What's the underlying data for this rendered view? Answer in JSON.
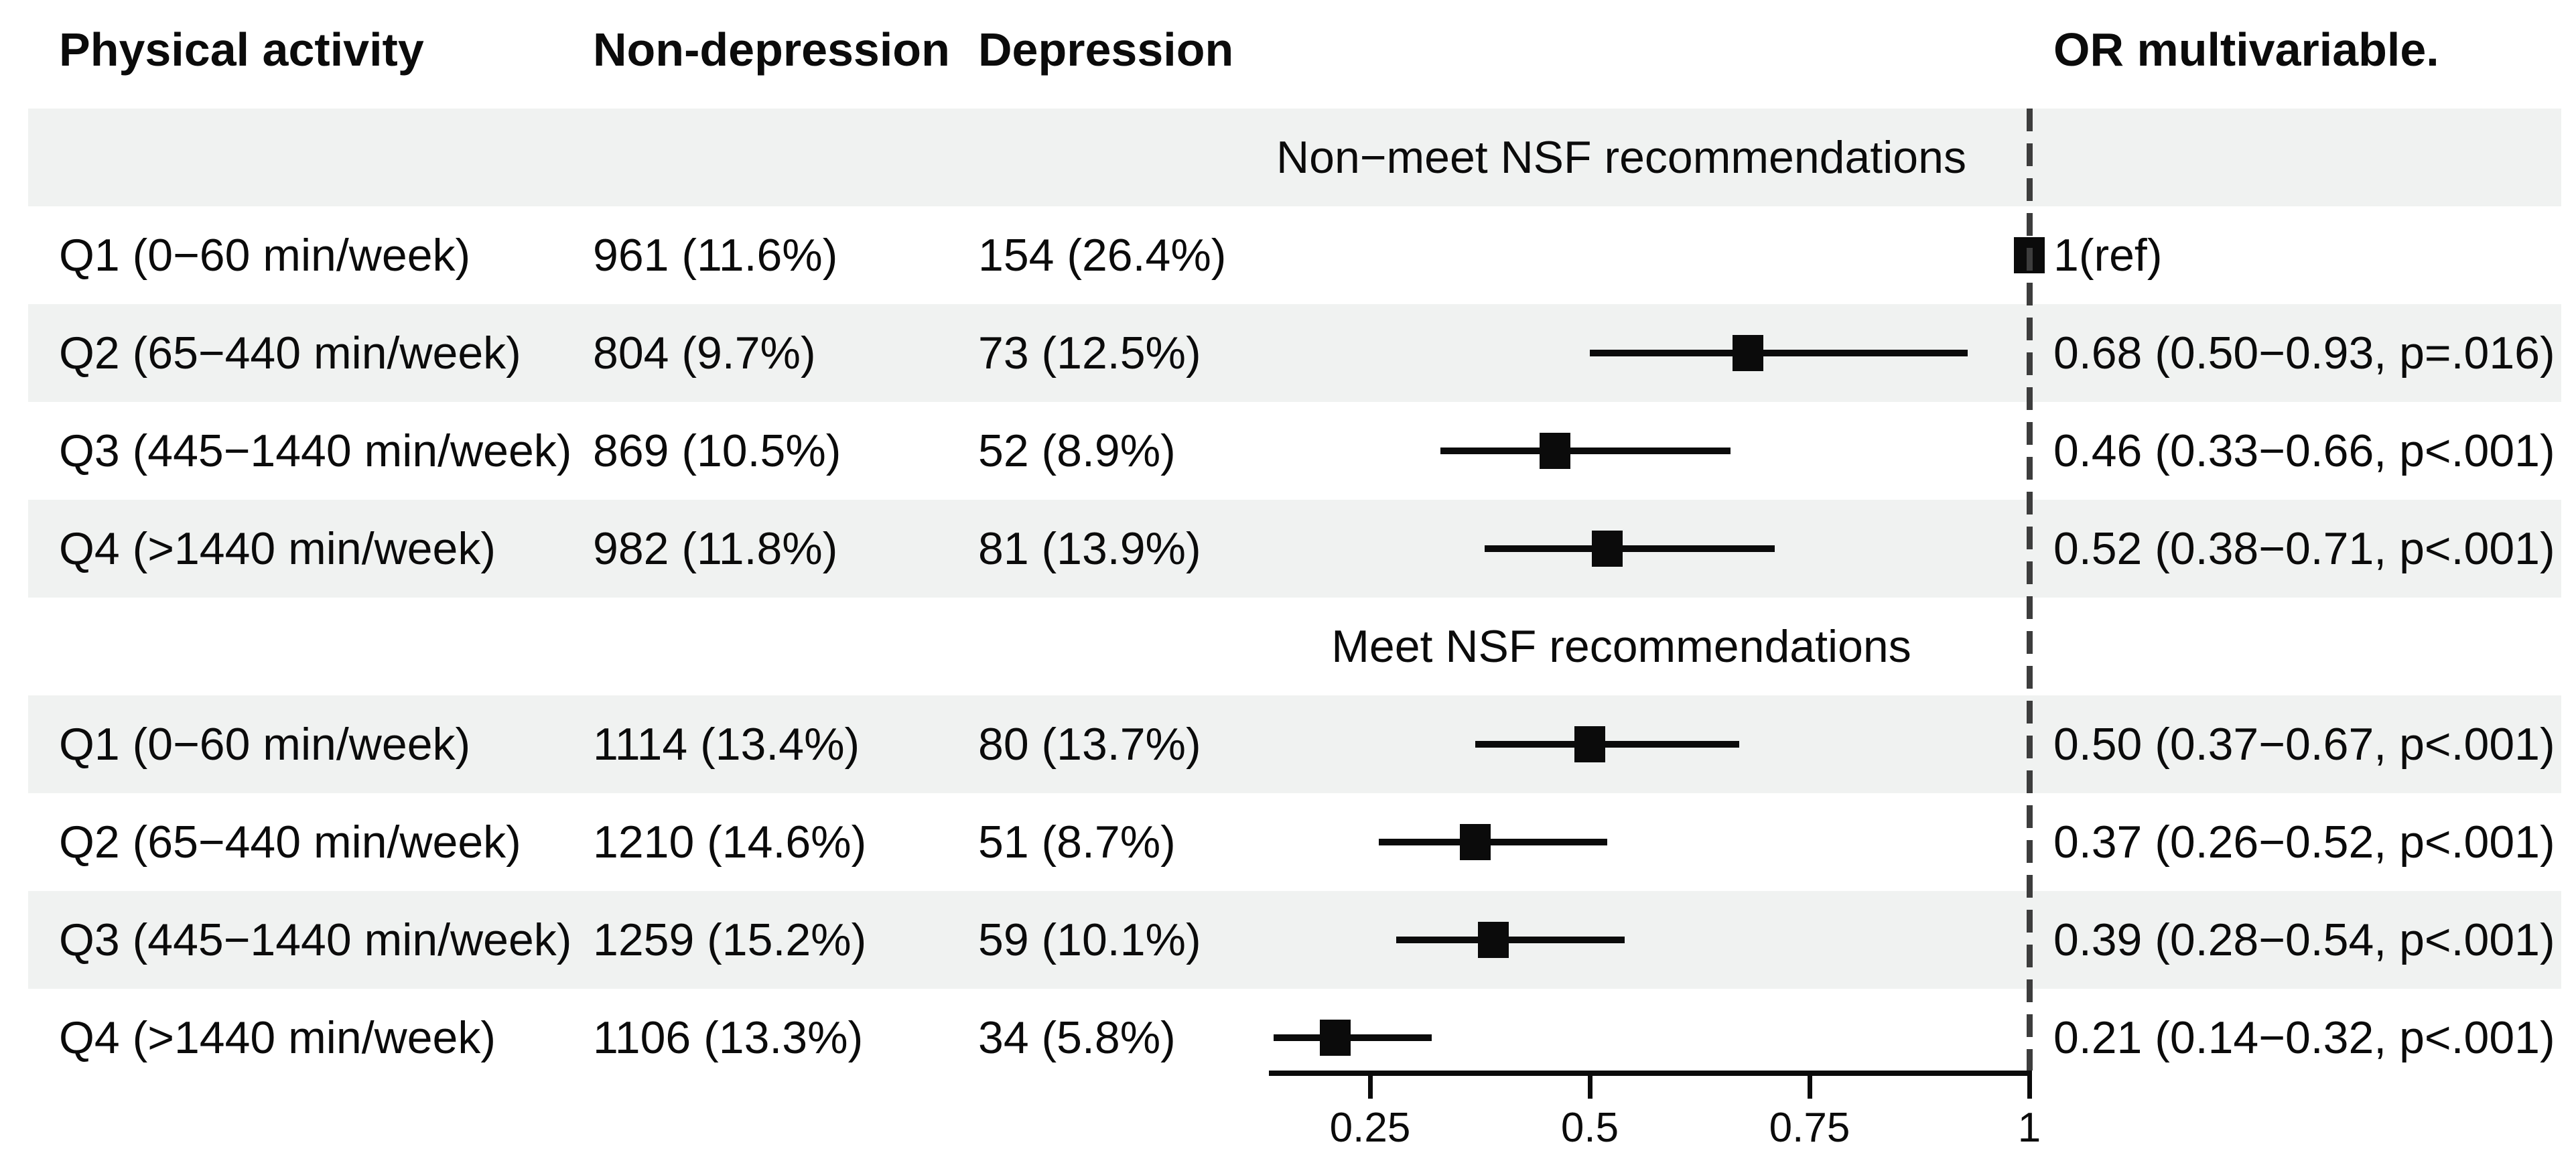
{
  "header": {
    "col1": "Physical activity",
    "col2": "Non-depression",
    "col3": "Depression",
    "col4": "OR multivariable."
  },
  "chart_data": {
    "type": "forest",
    "title": "",
    "xlabel": "",
    "x_scale": "linear",
    "x_ticks": [
      0.25,
      0.5,
      0.75,
      1
    ],
    "x_tick_labels": [
      "0.25",
      "0.5",
      "0.75",
      "1"
    ],
    "x_range": [
      0.135,
      1.003
    ],
    "ref_line": 1,
    "grid": false,
    "legend": "none",
    "sections": [
      {
        "title": "Non−meet NSF recommendations",
        "rows": [
          {
            "label": "Q1 (0−60 min/week)",
            "non_depression": "961 (11.6%)",
            "depression": "154 (26.4%)",
            "or": 1,
            "ci_low": null,
            "ci_high": null,
            "or_label": "1(ref)"
          },
          {
            "label": "Q2 (65−440 min/week)",
            "non_depression": "804 (9.7%)",
            "depression": "73 (12.5%)",
            "or": 0.68,
            "ci_low": 0.5,
            "ci_high": 0.93,
            "or_label": "0.68 (0.50−0.93, p=.016)"
          },
          {
            "label": "Q3 (445−1440 min/week)",
            "non_depression": "869 (10.5%)",
            "depression": "52 (8.9%)",
            "or": 0.46,
            "ci_low": 0.33,
            "ci_high": 0.66,
            "or_label": "0.46 (0.33−0.66, p<.001)"
          },
          {
            "label": "Q4 (>1440 min/week)",
            "non_depression": "982 (11.8%)",
            "depression": "81 (13.9%)",
            "or": 0.52,
            "ci_low": 0.38,
            "ci_high": 0.71,
            "or_label": "0.52 (0.38−0.71, p<.001)"
          }
        ]
      },
      {
        "title": "Meet NSF recommendations",
        "rows": [
          {
            "label": "Q1 (0−60 min/week)",
            "non_depression": "1114 (13.4%)",
            "depression": "80 (13.7%)",
            "or": 0.5,
            "ci_low": 0.37,
            "ci_high": 0.67,
            "or_label": "0.50 (0.37−0.67, p<.001)"
          },
          {
            "label": "Q2 (65−440 min/week)",
            "non_depression": "1210 (14.6%)",
            "depression": "51 (8.7%)",
            "or": 0.37,
            "ci_low": 0.26,
            "ci_high": 0.52,
            "or_label": "0.37 (0.26−0.52, p<.001)"
          },
          {
            "label": "Q3 (445−1440 min/week)",
            "non_depression": "1259 (15.2%)",
            "depression": "59 (10.1%)",
            "or": 0.39,
            "ci_low": 0.28,
            "ci_high": 0.54,
            "or_label": "0.39 (0.28−0.54, p<.001)"
          },
          {
            "label": "Q4 (>1440 min/week)",
            "non_depression": "1106 (13.3%)",
            "depression": "34 (5.8%)",
            "or": 0.21,
            "ci_low": 0.14,
            "ci_high": 0.32,
            "or_label": "0.21 (0.14−0.32, p<.001)"
          }
        ]
      }
    ],
    "colors": {
      "marker": "#0b0b0b",
      "ci_line": "#0b0b0b",
      "stripe": "#f0f2f1",
      "ref_line": "#3d3d3d",
      "text": "#0b0b0b",
      "background": "#ffffff"
    }
  }
}
